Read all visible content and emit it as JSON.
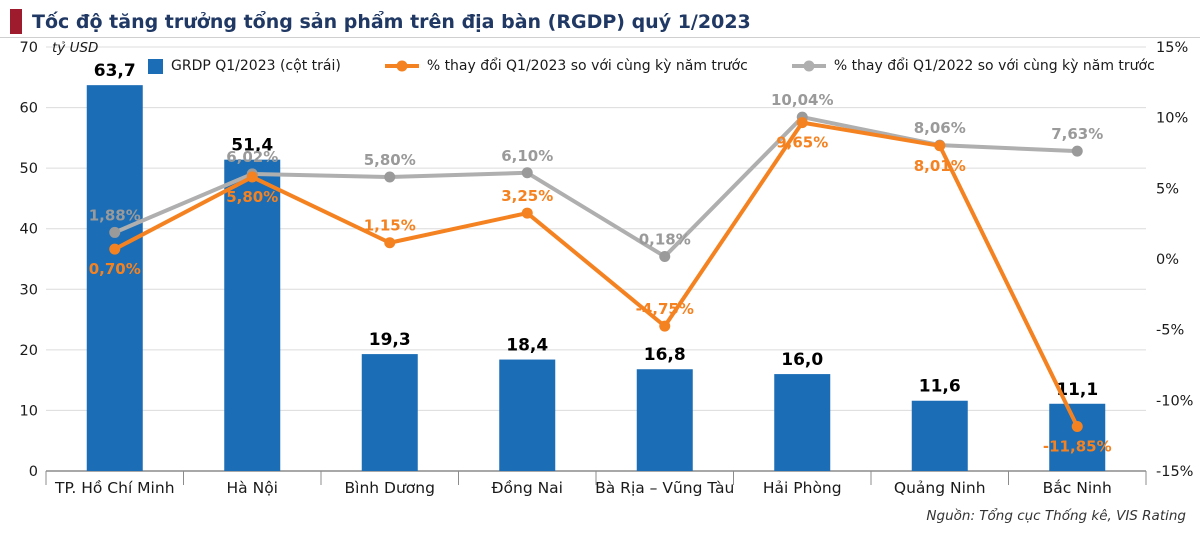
{
  "header": {
    "title": "Tốc độ tăng trưởng tổng sản phẩm trên địa bàn (RGDP) quý 1/2023"
  },
  "legend": {
    "bar": "GRDP Q1/2023 (cột trái)",
    "line_2023": "% thay đổi Q1/2023 so với cùng kỳ năm trước",
    "line_2022": "% thay đổi Q1/2022 so với cùng kỳ năm trước"
  },
  "footer": {
    "source": "Nguồn: Tổng cục Thống kê, VIS Rating"
  },
  "colors": {
    "bar": "#1B6DB5",
    "orange": "#F58220",
    "gray": "#AFAFAF",
    "graydot": "#9A9A9A",
    "accent": "#9E1B2E",
    "navy": "#203864"
  },
  "chart_data": {
    "type": "combo-bar-line",
    "title": "Tốc độ tăng trưởng tổng sản phẩm trên địa bàn (RGDP) quý 1/2023",
    "categories": [
      "TP. Hồ Chí Minh",
      "Hà Nội",
      "Bình Dương",
      "Đồng Nai",
      "Bà Rịa – Vũng Tàu",
      "Hải Phòng",
      "Quảng Ninh",
      "Bắc Ninh"
    ],
    "bar_series": {
      "name": "GRDP Q1/2023 (cột trái)",
      "unit": "tỷ USD",
      "values": [
        63.7,
        51.4,
        19.3,
        18.4,
        16.8,
        16.0,
        11.6,
        11.1
      ],
      "labels": [
        "63,7",
        "51,4",
        "19,3",
        "18,4",
        "16,8",
        "16,0",
        "11,6",
        "11,1"
      ]
    },
    "line_series": [
      {
        "name": "% thay đổi Q1/2023 so với cùng kỳ năm trước",
        "values": [
          0.7,
          5.8,
          1.15,
          3.25,
          -4.75,
          9.65,
          8.01,
          -11.85
        ],
        "labels": [
          "0,70%",
          "5,80%",
          "1,15%",
          "3,25%",
          "-4,75%",
          "9,65%",
          "8,01%",
          "-11,85%"
        ],
        "label_side": [
          "below",
          "below",
          "above",
          "above",
          "above",
          "below",
          "below",
          "below"
        ]
      },
      {
        "name": "% thay đổi Q1/2022 so với cùng kỳ năm trước",
        "values": [
          1.88,
          6.02,
          5.8,
          6.1,
          0.18,
          10.04,
          8.06,
          7.63
        ],
        "labels": [
          "1,88%",
          "6,02%",
          "5,80%",
          "6,10%",
          "0,18%",
          "10,04%",
          "8,06%",
          "7,63%"
        ],
        "label_side": [
          "above",
          "above",
          "above",
          "above",
          "above",
          "above",
          "above",
          "above"
        ]
      }
    ],
    "left_axis": {
      "label": "tỷ USD",
      "min": 0,
      "max": 70,
      "ticks": [
        0,
        10,
        20,
        30,
        40,
        50,
        60,
        70
      ]
    },
    "right_axis": {
      "min": -15,
      "max": 15,
      "tick_values": [
        15,
        10,
        5,
        0,
        -5,
        -10,
        -15
      ],
      "ticks": [
        "15%",
        "10%",
        "5%",
        "0%",
        "-5%",
        "-10%",
        "-15%"
      ]
    },
    "grid": true,
    "legend_position": "top-inside"
  }
}
